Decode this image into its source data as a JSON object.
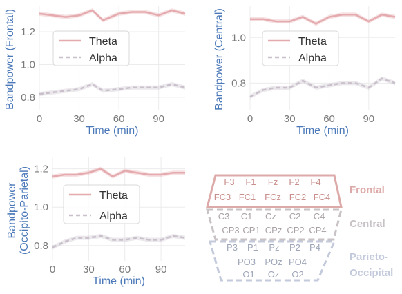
{
  "chart_data": [
    {
      "type": "line",
      "xlabel": "Time (min)",
      "ylabel": [
        "Bandpower (Frontal)"
      ],
      "x_ticks": [
        "0",
        "30",
        "60",
        "90"
      ],
      "y_ticks": [
        "0.8",
        "1.0",
        "1.2"
      ],
      "xlim": [
        0,
        110
      ],
      "ylim": [
        0.72,
        1.36
      ],
      "grid": true,
      "legend_position": "center-left",
      "x": [
        0,
        10,
        20,
        30,
        40,
        48,
        60,
        70,
        80,
        90,
        100,
        110
      ],
      "series": [
        {
          "name": "Theta",
          "color": "#e4aaae",
          "style": "solid",
          "values": [
            1.31,
            1.3,
            1.29,
            1.3,
            1.33,
            1.27,
            1.31,
            1.32,
            1.32,
            1.3,
            1.33,
            1.31
          ]
        },
        {
          "name": "Alpha",
          "color": "#c9c0cc",
          "style": "dashed",
          "values": [
            0.82,
            0.83,
            0.84,
            0.85,
            0.88,
            0.84,
            0.85,
            0.86,
            0.86,
            0.86,
            0.88,
            0.86
          ]
        }
      ]
    },
    {
      "type": "line",
      "xlabel": "Time (min)",
      "ylabel": [
        "Bandpower (Central)"
      ],
      "x_ticks": [
        "0",
        "30",
        "60",
        "90"
      ],
      "y_ticks": [
        "0.8",
        "1.0"
      ],
      "xlim": [
        0,
        110
      ],
      "ylim": [
        0.68,
        1.14
      ],
      "grid": true,
      "legend_position": "top-left",
      "x": [
        0,
        10,
        20,
        30,
        40,
        50,
        60,
        70,
        80,
        90,
        100,
        110
      ],
      "series": [
        {
          "name": "Theta",
          "color": "#e4aaae",
          "style": "solid",
          "values": [
            1.08,
            1.08,
            1.07,
            1.07,
            1.09,
            1.06,
            1.09,
            1.1,
            1.1,
            1.07,
            1.1,
            1.09
          ]
        },
        {
          "name": "Alpha",
          "color": "#c9c0cc",
          "style": "dashed",
          "values": [
            0.74,
            0.77,
            0.78,
            0.78,
            0.81,
            0.78,
            0.79,
            0.8,
            0.8,
            0.78,
            0.82,
            0.8
          ]
        }
      ]
    },
    {
      "type": "line",
      "xlabel": "Time (min)",
      "ylabel": [
        "Bandpower",
        "(Occipito-Parietal)"
      ],
      "x_ticks": [
        "0",
        "30",
        "60",
        "90"
      ],
      "y_ticks": [
        "0.8",
        "1.0",
        "1.2"
      ],
      "xlim": [
        0,
        110
      ],
      "ylim": [
        0.72,
        1.26
      ],
      "grid": true,
      "legend_position": "center-left",
      "x": [
        0,
        10,
        20,
        30,
        40,
        50,
        60,
        70,
        80,
        90,
        100,
        110
      ],
      "series": [
        {
          "name": "Theta",
          "color": "#e4aaae",
          "style": "solid",
          "values": [
            1.16,
            1.17,
            1.17,
            1.18,
            1.2,
            1.16,
            1.19,
            1.18,
            1.17,
            1.17,
            1.18,
            1.18
          ]
        },
        {
          "name": "Alpha",
          "color": "#c9c0cc",
          "style": "dashed",
          "values": [
            0.79,
            0.82,
            0.84,
            0.84,
            0.85,
            0.83,
            0.83,
            0.84,
            0.83,
            0.83,
            0.85,
            0.84
          ]
        }
      ]
    }
  ],
  "electrode_map": {
    "regions": [
      {
        "label": "Frontal",
        "color": "#dcaaa8",
        "rows": [
          [
            "F3",
            "F1",
            "Fz",
            "F2",
            "F4"
          ],
          [
            "FC3",
            "FC1",
            "FCz",
            "FC2",
            "FC4"
          ]
        ]
      },
      {
        "label": "Central",
        "color": "#c8c2c6",
        "rows": [
          [
            "C3",
            "C1",
            "Cz",
            "C2",
            "C4"
          ],
          [
            "CP3",
            "CP1",
            "CPz",
            "CP2",
            "CP4"
          ]
        ]
      },
      {
        "label": "Parieto-\nOccipital",
        "color": "#c3cadb",
        "rows": [
          [
            "P3",
            "P1",
            "Pz",
            "P2",
            "P4"
          ],
          [
            "PO3",
            "POz",
            "PO4"
          ],
          [
            "O1",
            "Oz",
            "O2"
          ]
        ]
      }
    ]
  }
}
